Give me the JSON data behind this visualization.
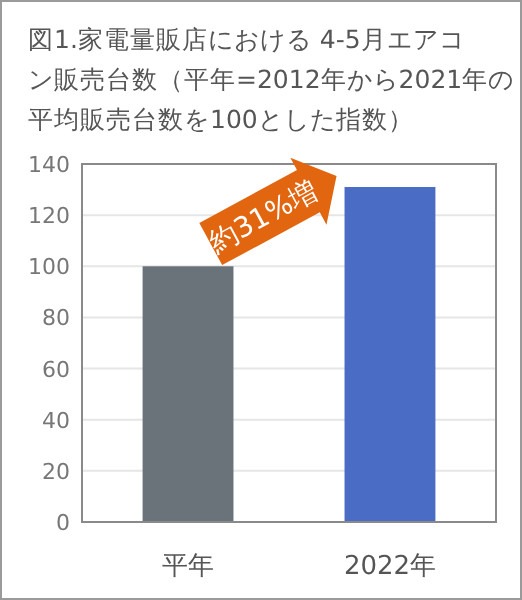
{
  "chart_data": {
    "type": "bar",
    "title": "図1.家電量販店における 4-5月エアコン販売台数（平年=2012年から2021年の平均販売台数を100とした指数）",
    "categories": [
      "平年",
      "2022年"
    ],
    "values": [
      100,
      131
    ],
    "colors": [
      "#6b737a",
      "#4a6cc4"
    ],
    "ylim": [
      0,
      140
    ],
    "yticks": [
      0,
      20,
      40,
      60,
      80,
      100,
      120,
      140
    ],
    "grid": "y",
    "annotations": [
      "約31%増"
    ]
  }
}
